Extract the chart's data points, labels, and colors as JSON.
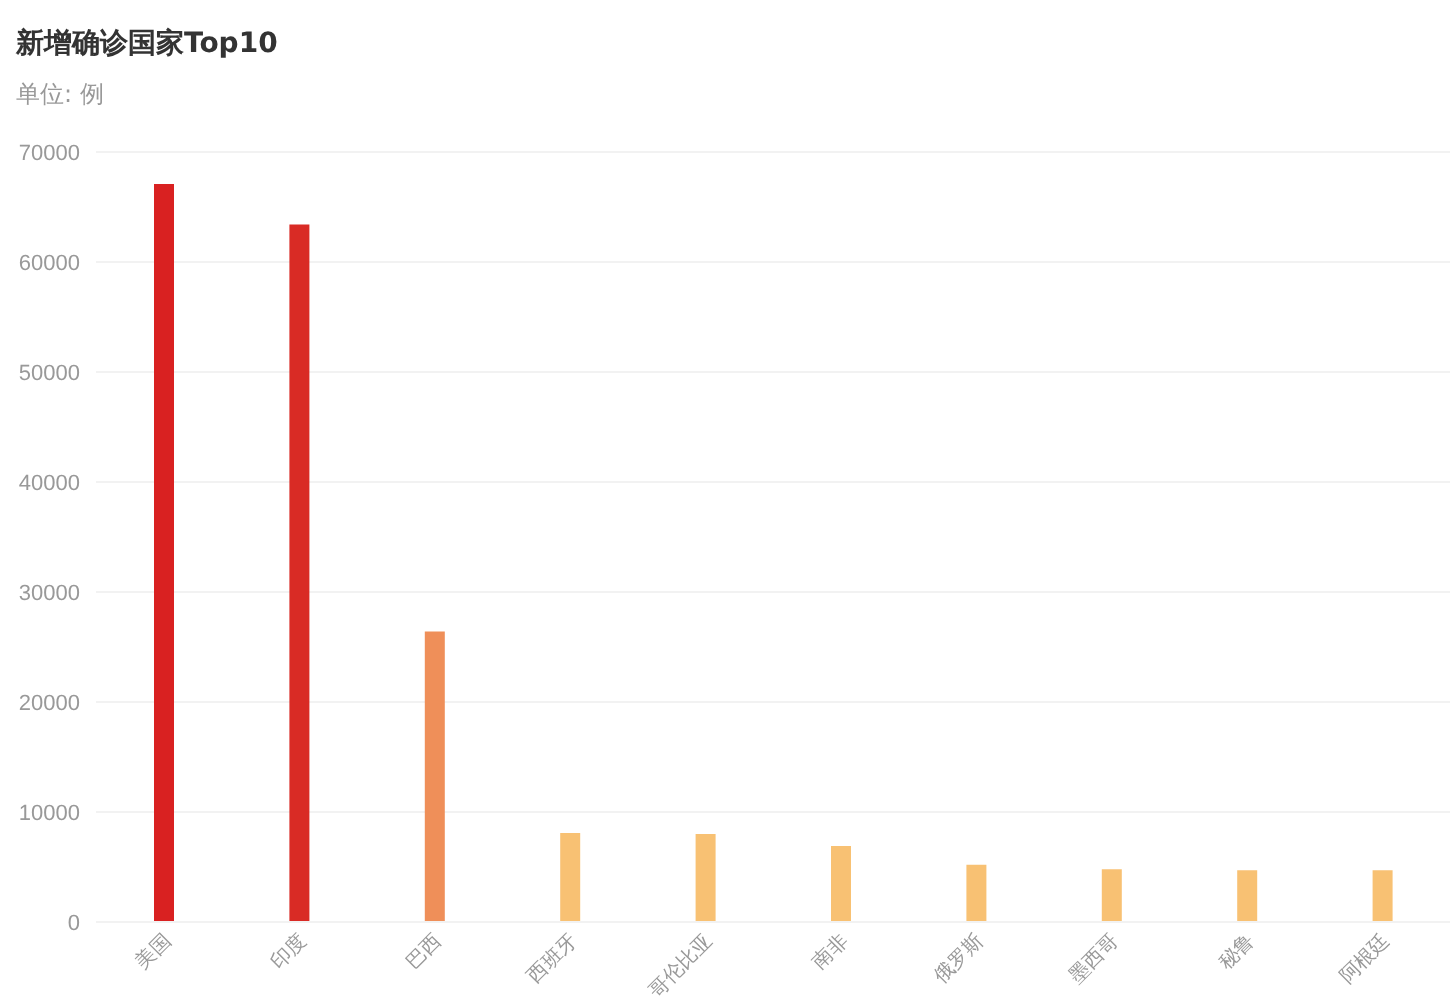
{
  "chart_data": {
    "type": "bar",
    "title": "新增确诊国家Top10",
    "subtitle": "单位: 例",
    "categories": [
      "美国",
      "印度",
      "巴西",
      "西班牙",
      "哥伦比亚",
      "南非",
      "俄罗斯",
      "墨西哥",
      "秘鲁",
      "阿根廷"
    ],
    "values": [
      67100,
      63400,
      26400,
      8100,
      8000,
      6900,
      5200,
      4800,
      4700,
      4700
    ],
    "colors": [
      "#d92121",
      "#d92b25",
      "#ef8f59",
      "#f8c173",
      "#f8c173",
      "#f8c173",
      "#f8c173",
      "#f8c173",
      "#f8c173",
      "#f8c173"
    ],
    "ylim": [
      0,
      70000
    ],
    "yticks": [
      0,
      10000,
      20000,
      30000,
      40000,
      50000,
      60000,
      70000
    ],
    "grid": "y"
  }
}
